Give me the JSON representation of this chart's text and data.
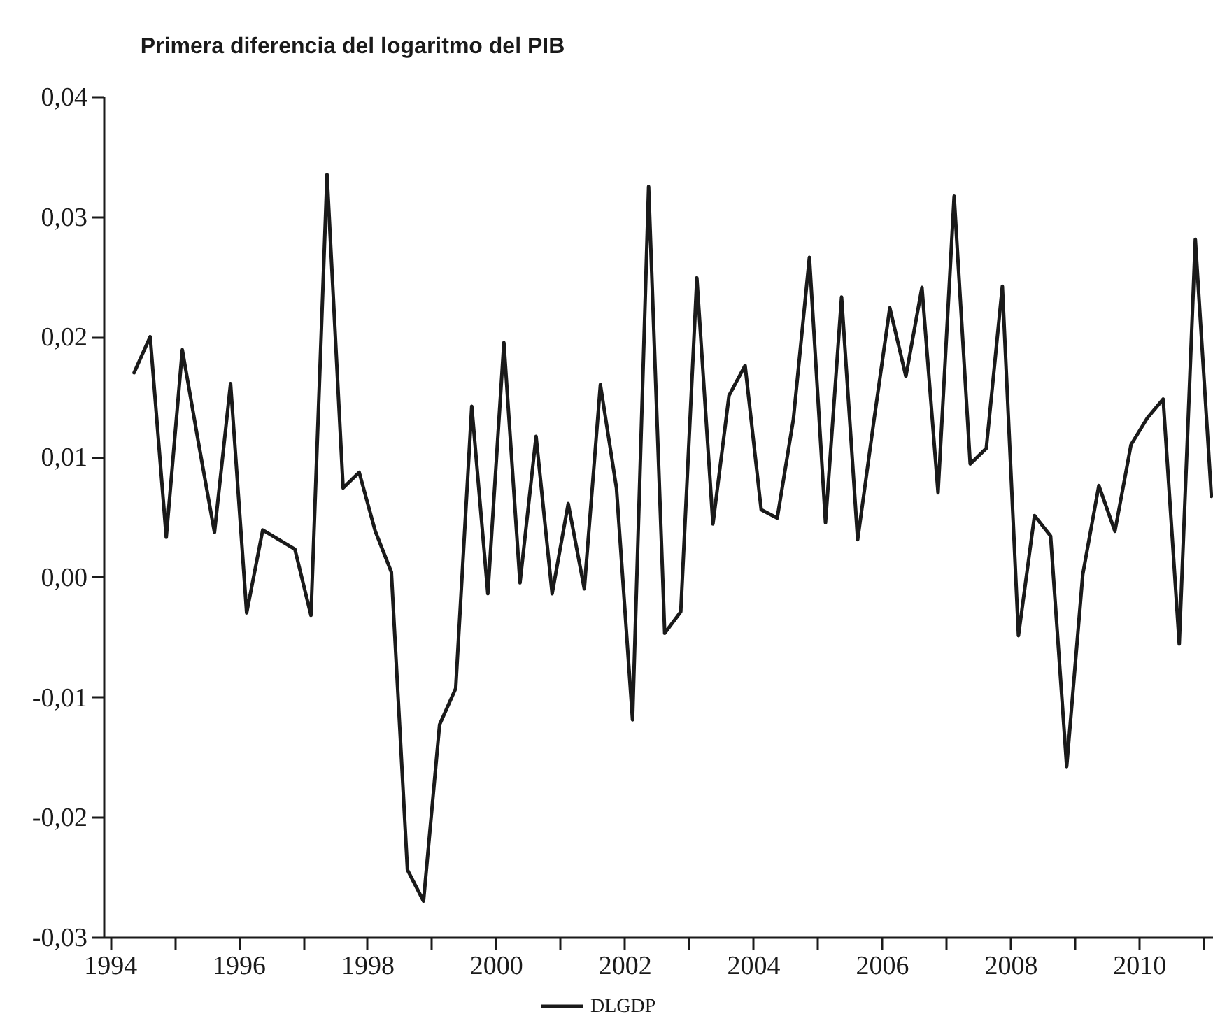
{
  "chart_data": {
    "type": "line",
    "title": "Primera diferencia del logaritmo del PIB",
    "x": [
      1994.375,
      1994.625,
      1994.875,
      1995.125,
      1995.375,
      1995.625,
      1995.875,
      1996.125,
      1996.375,
      1996.625,
      1996.875,
      1997.125,
      1997.375,
      1997.625,
      1997.875,
      1998.125,
      1998.375,
      1998.625,
      1998.875,
      1999.125,
      1999.375,
      1999.625,
      1999.875,
      2000.125,
      2000.375,
      2000.625,
      2000.875,
      2001.125,
      2001.375,
      2001.625,
      2001.875,
      2002.125,
      2002.375,
      2002.625,
      2002.875,
      2003.125,
      2003.375,
      2003.625,
      2003.875,
      2004.125,
      2004.375,
      2004.625,
      2004.875,
      2005.125,
      2005.375,
      2005.625,
      2005.875,
      2006.125,
      2006.375,
      2006.625,
      2006.875,
      2007.125,
      2007.375,
      2007.625,
      2007.875,
      2008.125,
      2008.375,
      2008.625,
      2008.875,
      2009.125,
      2009.375,
      2009.625,
      2009.875,
      2010.125,
      2010.375,
      2010.625,
      2010.875,
      2011.125
    ],
    "series": [
      {
        "name": "DLGDP",
        "color": "#1a1a1a",
        "values": [
          0.017,
          0.02,
          0.0033,
          0.0189,
          0.0112,
          0.0037,
          0.0161,
          -0.003,
          0.0039,
          0.0031,
          0.0023,
          -0.0032,
          0.0335,
          0.0074,
          0.0087,
          0.0038,
          0.0004,
          -0.0244,
          -0.027,
          -0.0123,
          -0.0093,
          0.0142,
          -0.0014,
          0.0195,
          -0.0005,
          0.0117,
          -0.0014,
          0.0061,
          -0.001,
          0.016,
          0.0074,
          -0.0119,
          0.0325,
          -0.0047,
          -0.0029,
          0.0249,
          0.0044,
          0.0151,
          0.0176,
          0.0056,
          0.0049,
          0.0131,
          0.0266,
          0.0045,
          0.0233,
          0.0031,
          0.0129,
          0.0224,
          0.0167,
          0.0241,
          0.007,
          0.0317,
          0.0094,
          0.0107,
          0.0242,
          -0.0049,
          0.0051,
          0.0034,
          -0.0158,
          0.0002,
          0.0076,
          0.0038,
          0.011,
          0.0132,
          0.0148,
          -0.0056,
          0.0281,
          0.0067
        ]
      }
    ],
    "xlim": [
      1993.9,
      2011.15
    ],
    "xticks": [
      1994,
      {
        "value": 1995,
        "label": null
      },
      1996,
      {
        "value": 1997,
        "label": null
      },
      1998,
      {
        "value": 1999,
        "label": null
      },
      2000,
      {
        "value": 2001,
        "label": null
      },
      2002,
      {
        "value": 2003,
        "label": null
      },
      2004,
      {
        "value": 2005,
        "label": null
      },
      2006,
      {
        "value": 2007,
        "label": null
      },
      2008,
      {
        "value": 2009,
        "label": null
      },
      2010,
      {
        "value": 2011,
        "label": null
      }
    ],
    "ylim": [
      -0.03,
      0.04
    ],
    "yticks": [
      {
        "value": -0.03,
        "label": "-0,03"
      },
      {
        "value": -0.02,
        "label": "-0,02"
      },
      {
        "value": -0.01,
        "label": "-0,01"
      },
      {
        "value": 0,
        "label": "0,00"
      },
      {
        "value": 0.01,
        "label": "0,01"
      },
      {
        "value": 0.02,
        "label": "0,02"
      },
      {
        "value": 0.03,
        "label": "0,03"
      },
      {
        "value": 0.04,
        "label": "0,04"
      }
    ],
    "grid": false,
    "legend": "bottom",
    "line_style": "solid"
  }
}
